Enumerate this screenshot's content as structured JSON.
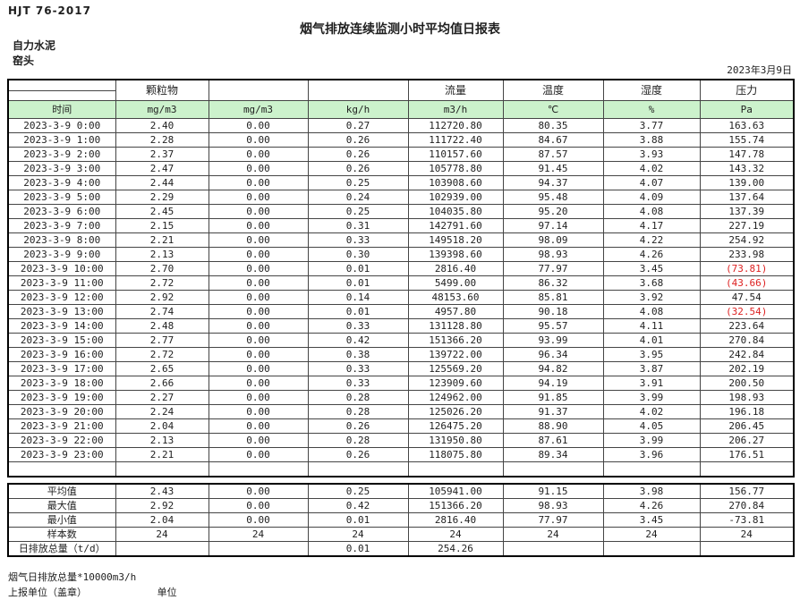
{
  "header": {
    "standard": "HJT  76-2017",
    "title": "烟气排放连续监测小时平均值日报表",
    "company": "自力水泥",
    "station": "窑头",
    "date": "2023年3月9日"
  },
  "table": {
    "group_headers": [
      "",
      "颗粒物",
      "",
      "",
      "流量",
      "温度",
      "湿度",
      "压力"
    ],
    "unit_row": [
      "时间",
      "mg/m3",
      "mg/m3",
      "kg/h",
      "m3/h",
      "℃",
      "%",
      "Pa"
    ],
    "rows": [
      [
        "2023-3-9 0:00",
        "2.40",
        "0.00",
        "0.27",
        "112720.80",
        "80.35",
        "3.77",
        "163.63"
      ],
      [
        "2023-3-9 1:00",
        "2.28",
        "0.00",
        "0.26",
        "111722.40",
        "84.67",
        "3.88",
        "155.74"
      ],
      [
        "2023-3-9 2:00",
        "2.37",
        "0.00",
        "0.26",
        "110157.60",
        "87.57",
        "3.93",
        "147.78"
      ],
      [
        "2023-3-9 3:00",
        "2.47",
        "0.00",
        "0.26",
        "105778.80",
        "91.45",
        "4.02",
        "143.32"
      ],
      [
        "2023-3-9 4:00",
        "2.44",
        "0.00",
        "0.25",
        "103908.60",
        "94.37",
        "4.07",
        "139.00"
      ],
      [
        "2023-3-9 5:00",
        "2.29",
        "0.00",
        "0.24",
        "102939.00",
        "95.48",
        "4.09",
        "137.64"
      ],
      [
        "2023-3-9 6:00",
        "2.45",
        "0.00",
        "0.25",
        "104035.80",
        "95.20",
        "4.08",
        "137.39"
      ],
      [
        "2023-3-9 7:00",
        "2.15",
        "0.00",
        "0.31",
        "142791.60",
        "97.14",
        "4.17",
        "227.19"
      ],
      [
        "2023-3-9 8:00",
        "2.21",
        "0.00",
        "0.33",
        "149518.20",
        "98.09",
        "4.22",
        "254.92"
      ],
      [
        "2023-3-9 9:00",
        "2.13",
        "0.00",
        "0.30",
        "139398.60",
        "98.93",
        "4.26",
        "233.98"
      ],
      [
        "2023-3-9 10:00",
        "2.70",
        "0.00",
        "0.01",
        "2816.40",
        "77.97",
        "3.45",
        "(73.81)"
      ],
      [
        "2023-3-9 11:00",
        "2.72",
        "0.00",
        "0.01",
        "5499.00",
        "86.32",
        "3.68",
        "(43.66)"
      ],
      [
        "2023-3-9 12:00",
        "2.92",
        "0.00",
        "0.14",
        "48153.60",
        "85.81",
        "3.92",
        "47.54"
      ],
      [
        "2023-3-9 13:00",
        "2.74",
        "0.00",
        "0.01",
        "4957.80",
        "90.18",
        "4.08",
        "(32.54)"
      ],
      [
        "2023-3-9 14:00",
        "2.48",
        "0.00",
        "0.33",
        "131128.80",
        "95.57",
        "4.11",
        "223.64"
      ],
      [
        "2023-3-9 15:00",
        "2.77",
        "0.00",
        "0.42",
        "151366.20",
        "93.99",
        "4.01",
        "270.84"
      ],
      [
        "2023-3-9 16:00",
        "2.72",
        "0.00",
        "0.38",
        "139722.00",
        "96.34",
        "3.95",
        "242.84"
      ],
      [
        "2023-3-9 17:00",
        "2.65",
        "0.00",
        "0.33",
        "125569.20",
        "94.82",
        "3.87",
        "202.19"
      ],
      [
        "2023-3-9 18:00",
        "2.66",
        "0.00",
        "0.33",
        "123909.60",
        "94.19",
        "3.91",
        "200.50"
      ],
      [
        "2023-3-9 19:00",
        "2.27",
        "0.00",
        "0.28",
        "124962.00",
        "91.85",
        "3.99",
        "198.93"
      ],
      [
        "2023-3-9 20:00",
        "2.24",
        "0.00",
        "0.28",
        "125026.20",
        "91.37",
        "4.02",
        "196.18"
      ],
      [
        "2023-3-9 21:00",
        "2.04",
        "0.00",
        "0.26",
        "126475.20",
        "88.90",
        "4.05",
        "206.45"
      ],
      [
        "2023-3-9 22:00",
        "2.13",
        "0.00",
        "0.28",
        "131950.80",
        "87.61",
        "3.99",
        "206.27"
      ],
      [
        "2023-3-9 23:00",
        "2.21",
        "0.00",
        "0.26",
        "118075.80",
        "89.34",
        "3.96",
        "176.51"
      ]
    ]
  },
  "summary": {
    "rows": [
      {
        "label": "平均值",
        "values": [
          "2.43",
          "0.00",
          "0.25",
          "105941.00",
          "91.15",
          "3.98",
          "156.77"
        ]
      },
      {
        "label": "最大值",
        "values": [
          "2.92",
          "0.00",
          "0.42",
          "151366.20",
          "98.93",
          "4.26",
          "270.84"
        ]
      },
      {
        "label": "最小值",
        "values": [
          "2.04",
          "0.00",
          "0.01",
          "2816.40",
          "77.97",
          "3.45",
          "-73.81"
        ]
      },
      {
        "label": "样本数",
        "values": [
          "24",
          "24",
          "24",
          "24",
          "24",
          "24",
          "24"
        ]
      },
      {
        "label": "日排放总量（t/d）",
        "values": [
          "",
          "",
          "0.01",
          "254.26",
          "",
          "",
          ""
        ]
      }
    ]
  },
  "footer": {
    "note": "烟气日排放总量*10000m3/h",
    "report_unit_label": "上报单位（盖章）",
    "unit_label": "单位"
  },
  "colors": {
    "unit_row_green": "#ccf2cc",
    "negative_red": "#dd2222"
  }
}
